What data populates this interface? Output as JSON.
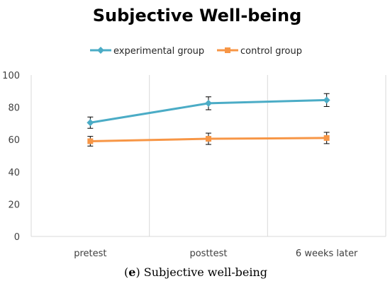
{
  "chart_data": {
    "type": "line",
    "title": "Subjective Well-being",
    "categories": [
      "pretest",
      "posttest",
      "6 weeks later"
    ],
    "ylim": [
      0,
      100
    ],
    "yticks": [
      0,
      20,
      40,
      60,
      80,
      100
    ],
    "grid": "vertical category lines",
    "legend_position": "top",
    "series": [
      {
        "name": "experimental group",
        "color": "#4BACC6",
        "marker": "diamond",
        "values": [
          70.5,
          82.5,
          84.5
        ],
        "error": [
          3.5,
          4.0,
          4.0
        ]
      },
      {
        "name": "control group",
        "color": "#F79646",
        "marker": "square",
        "values": [
          59,
          60.5,
          61
        ],
        "error": [
          3.0,
          3.5,
          3.5
        ]
      }
    ]
  },
  "caption": {
    "label": "e",
    "text": "Subjective well-being"
  }
}
